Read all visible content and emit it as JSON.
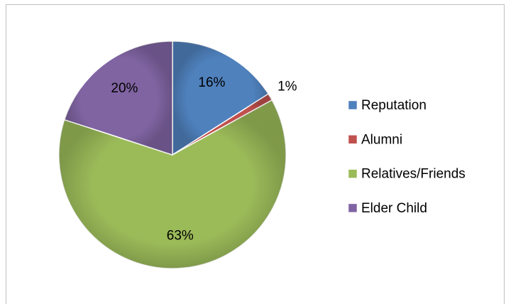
{
  "chart_data": {
    "type": "pie",
    "categories": [
      "Reputation",
      "Alumni",
      "Relatives/Friends",
      "Elder Child"
    ],
    "values": [
      16,
      1,
      63,
      20
    ],
    "value_labels": [
      "16%",
      "1%",
      "63%",
      "20%"
    ],
    "colors": [
      "#4f81bd",
      "#c0504d",
      "#9bbb59",
      "#8064a2"
    ],
    "legend": "right"
  }
}
